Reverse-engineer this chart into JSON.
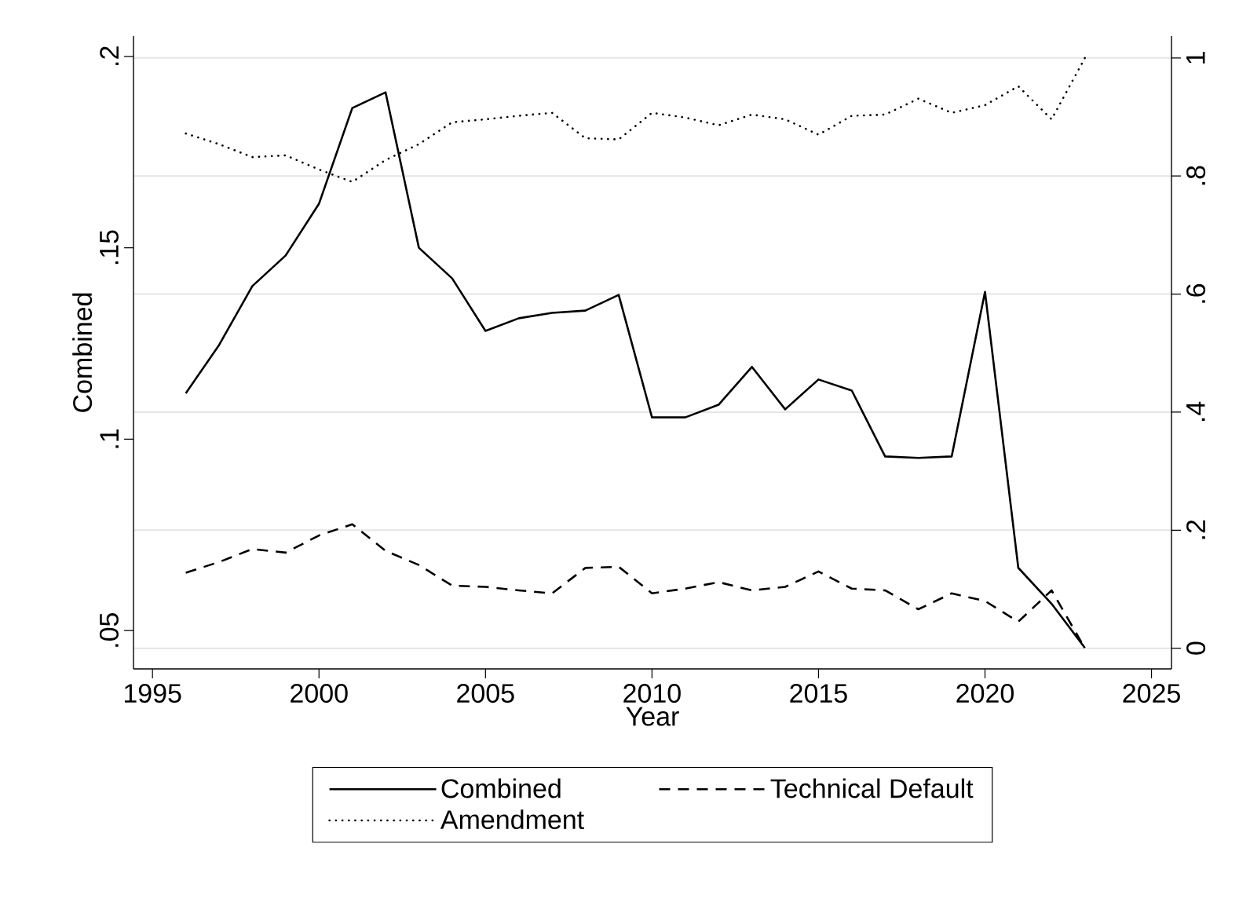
{
  "chart_data": {
    "type": "line",
    "xlabel": "Year",
    "ylabel": "Combined",
    "x": [
      1996,
      1997,
      1998,
      1999,
      2000,
      2001,
      2002,
      2003,
      2004,
      2005,
      2006,
      2007,
      2008,
      2009,
      2010,
      2011,
      2012,
      2013,
      2014,
      2015,
      2016,
      2017,
      2018,
      2019,
      2020,
      2021,
      2022,
      2023
    ],
    "series": [
      {
        "name": "Combined",
        "color": "#000000",
        "line_style": "solid",
        "axis": "y",
        "values": [
          0.112,
          0.1246,
          0.14,
          0.148,
          0.1615,
          0.1865,
          0.1906,
          0.15,
          0.142,
          0.1283,
          0.1316,
          0.133,
          0.1336,
          0.1377,
          0.1057,
          0.1057,
          0.109,
          0.1189,
          0.1078,
          0.1156,
          0.1127,
          0.0955,
          0.0951,
          0.0955,
          0.1385,
          0.0664,
          0.057,
          0.0455
        ]
      },
      {
        "name": "Technical Default",
        "color": "#000000",
        "line_style": "dashed",
        "axis": "y2",
        "values": [
          0.128,
          0.146,
          0.168,
          0.162,
          0.191,
          0.21,
          0.165,
          0.141,
          0.106,
          0.104,
          0.098,
          0.093,
          0.136,
          0.138,
          0.093,
          0.101,
          0.112,
          0.098,
          0.104,
          0.13,
          0.101,
          0.098,
          0.066,
          0.093,
          0.08,
          0.045,
          0.098,
          0.0
        ]
      },
      {
        "name": "Amendment",
        "color": "#000000",
        "line_style": "dotted",
        "axis": "y2",
        "values": [
          0.872,
          0.854,
          0.832,
          0.835,
          0.811,
          0.79,
          0.827,
          0.854,
          0.891,
          0.896,
          0.902,
          0.907,
          0.864,
          0.862,
          0.907,
          0.899,
          0.886,
          0.904,
          0.896,
          0.87,
          0.902,
          0.904,
          0.931,
          0.907,
          0.92,
          0.952,
          0.896,
          1.0
        ]
      }
    ],
    "xlim": [
      1994.43,
      2025.6
    ],
    "xticks": [
      1995,
      2000,
      2005,
      2010,
      2015,
      2020,
      2025
    ],
    "ylim": [
      0.04,
      0.2053
    ],
    "yticks": [
      {
        "value": 0.05,
        "label": ".05"
      },
      {
        "value": 0.1,
        "label": ".1"
      },
      {
        "value": 0.15,
        "label": ".15"
      },
      {
        "value": 0.2,
        "label": ".2"
      }
    ],
    "y2lim": [
      -0.035,
      1.037
    ],
    "y2ticks": [
      0,
      {
        "value": 0.2,
        "label": ".2"
      },
      {
        "value": 0.4,
        "label": ".4"
      },
      {
        "value": 0.6,
        "label": ".6"
      },
      {
        "value": 0.8,
        "label": ".8"
      },
      1
    ],
    "grid": "y",
    "legend": "bottom",
    "marker": "none"
  }
}
